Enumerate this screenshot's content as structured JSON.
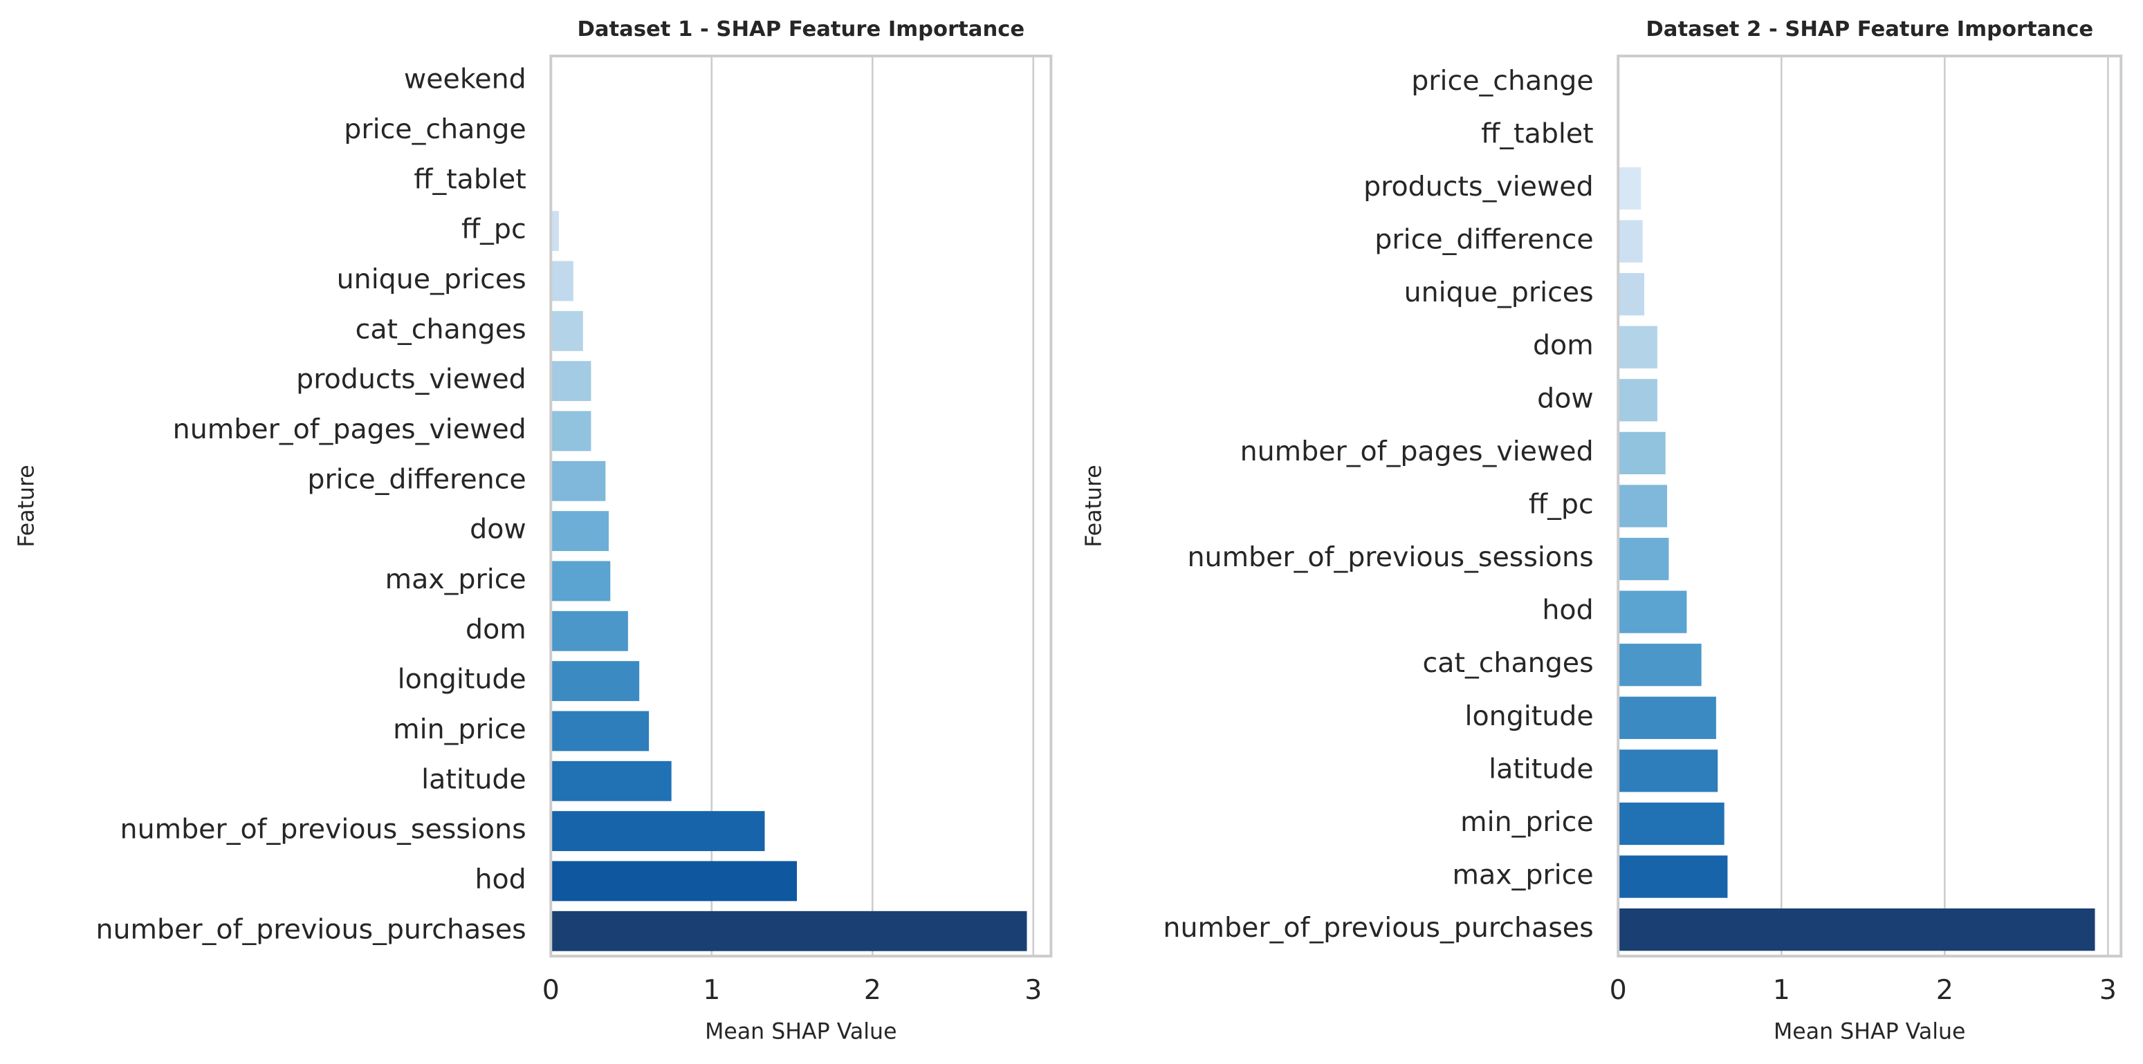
{
  "chart_data": [
    {
      "type": "bar",
      "orientation": "horizontal",
      "title": "Dataset 1 - SHAP Feature Importance",
      "xlabel": "Mean SHAP Value",
      "ylabel": "Feature",
      "categories": [
        "weekend",
        "price_change",
        "ff_tablet",
        "ff_pc",
        "unique_prices",
        "cat_changes",
        "products_viewed",
        "number_of_pages_viewed",
        "price_difference",
        "dow",
        "max_price",
        "dom",
        "longitude",
        "min_price",
        "latitude",
        "number_of_previous_sessions",
        "hod",
        "number_of_previous_purchases"
      ],
      "values": [
        0,
        0,
        0,
        0.05,
        0.14,
        0.2,
        0.25,
        0.25,
        0.34,
        0.36,
        0.37,
        0.48,
        0.55,
        0.61,
        0.75,
        1.33,
        1.53,
        2.96
      ],
      "colors": [
        "#eef5fc",
        "#e3eef9",
        "#d8e7f5",
        "#cde0f1",
        "#c1d9ed",
        "#b3d3e8",
        "#a3cbe3",
        "#91c2de",
        "#7fb8da",
        "#6caed6",
        "#5ba3d0",
        "#4b97c9",
        "#3b8bc2",
        "#2e7ebc",
        "#2171b5",
        "#1764ab",
        "#0f579f",
        "#1a3f73"
      ],
      "xlim": [
        0,
        3.11
      ],
      "xticks": [
        0,
        1,
        2,
        3
      ],
      "grid": true
    },
    {
      "type": "bar",
      "orientation": "horizontal",
      "title": "Dataset 2 - SHAP Feature Importance",
      "xlabel": "Mean SHAP Value",
      "ylabel": "Feature",
      "categories": [
        "price_change",
        "ff_tablet",
        "products_viewed",
        "price_difference",
        "unique_prices",
        "dom",
        "dow",
        "number_of_pages_viewed",
        "ff_pc",
        "number_of_previous_sessions",
        "hod",
        "cat_changes",
        "longitude",
        "latitude",
        "min_price",
        "max_price",
        "number_of_previous_purchases"
      ],
      "values": [
        0,
        0,
        0.14,
        0.15,
        0.16,
        0.24,
        0.24,
        0.29,
        0.3,
        0.31,
        0.42,
        0.51,
        0.6,
        0.61,
        0.65,
        0.67,
        2.92
      ],
      "colors": [
        "#eef5fc",
        "#e3eef9",
        "#d8e7f5",
        "#cde0f1",
        "#c1d9ed",
        "#b3d3e8",
        "#a3cbe3",
        "#91c2de",
        "#7fb8da",
        "#6caed6",
        "#5ba3d0",
        "#4b97c9",
        "#3b8bc2",
        "#2e7ebc",
        "#2171b5",
        "#1764ab",
        "#1a3f73"
      ],
      "xlim": [
        0,
        3.08
      ],
      "xticks": [
        0,
        1,
        2,
        3
      ],
      "grid": true
    }
  ]
}
